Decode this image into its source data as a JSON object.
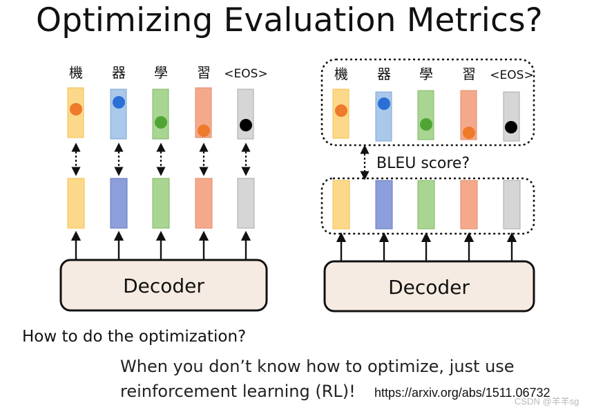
{
  "title": "Optimizing Evaluation Metrics?",
  "tokens": [
    "機",
    "器",
    "學",
    "習",
    "<EOS>"
  ],
  "colors": {
    "yellow_fill": "#fcd98a",
    "yellow_stroke": "#f3c04d",
    "blue_fill": "#a9c8ea",
    "blue_stroke": "#7fa6d3",
    "green_fill": "#a9d592",
    "green_stroke": "#7fb865",
    "red_fill": "#f5a98c",
    "red_stroke": "#e28a66",
    "gray_fill": "#d6d6d6",
    "gray_stroke": "#a8a8a8",
    "indigo_fill": "#8c9fdb",
    "indigo_stroke": "#6479c0",
    "dot_orange": "#ee7a2c",
    "dot_blue": "#2a6fd6",
    "dot_green": "#4fa435",
    "dot_black": "#000000",
    "decoder_fill": "#f6ebe2"
  },
  "left_diagram": {
    "decoder_label": "Decoder"
  },
  "right_diagram": {
    "decoder_label": "Decoder",
    "metric_label": "BLEU score?"
  },
  "question": "How to do the optimization?",
  "answer_line1": "When you don’t know how to optimize, just use",
  "answer_line2": "reinforcement learning (RL)!",
  "reference_url": "https://arxiv.org/abs/1511.06732",
  "watermark": "CSDN @羊羊sg"
}
